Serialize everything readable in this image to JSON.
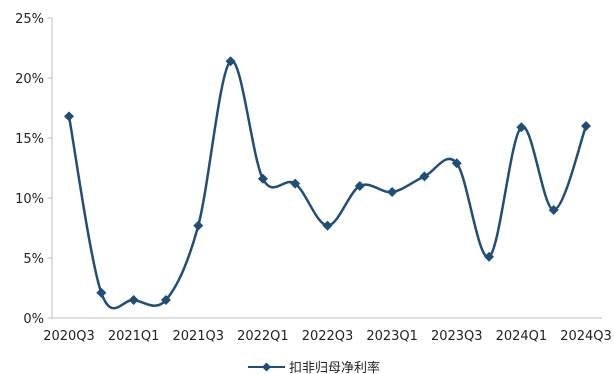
{
  "chart_data": {
    "type": "line",
    "x": [
      "2020Q3",
      "2020Q4",
      "2021Q1",
      "2021Q2",
      "2021Q3",
      "2021Q4",
      "2022Q1",
      "2022Q2",
      "2022Q3",
      "2022Q4",
      "2023Q1",
      "2023Q2",
      "2023Q3",
      "2023Q4",
      "2024Q1",
      "2024Q2",
      "2024Q3"
    ],
    "x_tick_labels": [
      "2020Q3",
      "2021Q1",
      "2021Q3",
      "2022Q1",
      "2022Q3",
      "2023Q1",
      "2023Q3",
      "2024Q1",
      "2024Q3"
    ],
    "y_tick_labels": [
      "0%",
      "5%",
      "10%",
      "15%",
      "20%",
      "25%"
    ],
    "ylim": [
      0,
      25
    ],
    "y_unit": "%",
    "grid": "none",
    "legend_position": "bottom-center",
    "series": [
      {
        "name": "扣非归母净利率",
        "color": "#1f4e79",
        "marker": "diamond",
        "smooth": true,
        "values": [
          16.8,
          2.1,
          1.5,
          1.5,
          7.7,
          21.4,
          11.6,
          11.2,
          7.7,
          11.0,
          10.5,
          11.8,
          12.9,
          5.1,
          15.9,
          9.0,
          16.0
        ]
      }
    ]
  }
}
